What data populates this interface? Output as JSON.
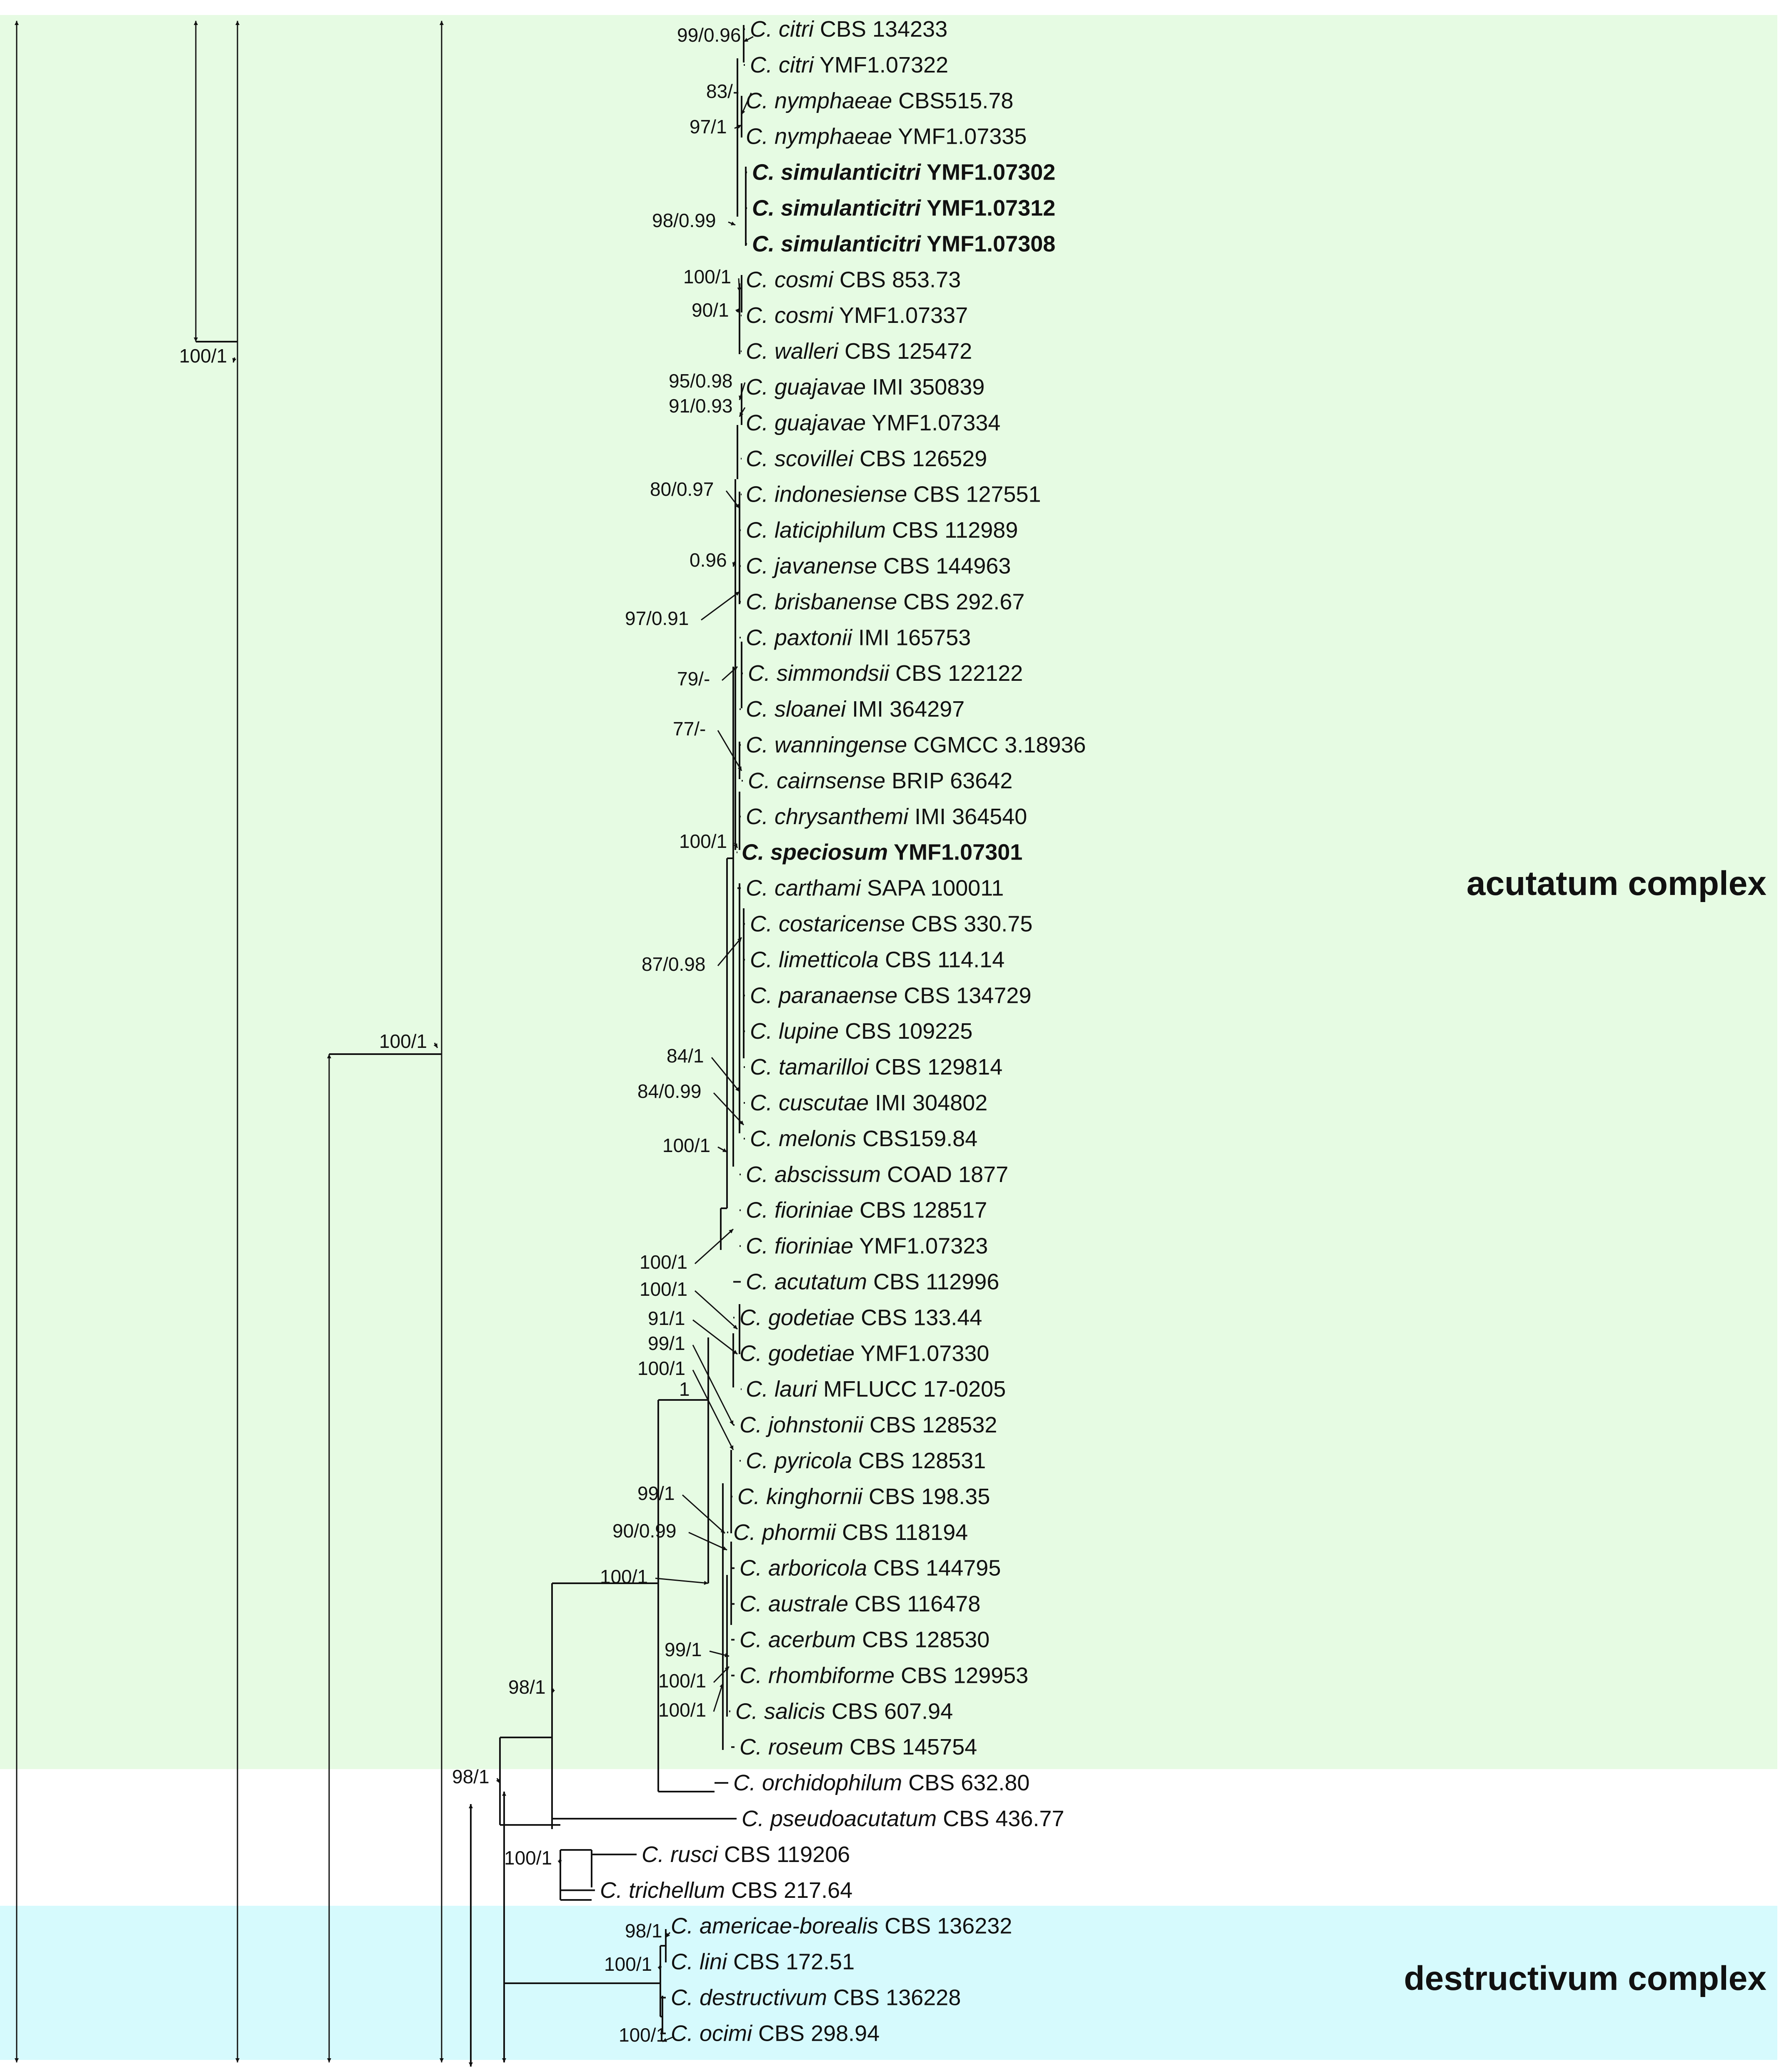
{
  "figure": {
    "type": "phylogenetic tree",
    "complexes": [
      {
        "label": "acutatum complex",
        "color": "#e6fbe3"
      },
      {
        "label": "destructivum complex",
        "color": "#d6fafd"
      }
    ],
    "taxa": [
      {
        "genus": "C.",
        "epithet": "citri",
        "strain": "CBS 134233",
        "bold": false
      },
      {
        "genus": "C.",
        "epithet": "citri",
        "strain": "YMF1.07322",
        "bold": false
      },
      {
        "genus": "C.",
        "epithet": "nymphaeae",
        "strain": "CBS515.78",
        "bold": false
      },
      {
        "genus": "C.",
        "epithet": "nymphaeae",
        "strain": "YMF1.07335",
        "bold": false
      },
      {
        "genus": "C.",
        "epithet": "simulanticitri",
        "strain": "YMF1.07302",
        "bold": true
      },
      {
        "genus": "C.",
        "epithet": "simulanticitri",
        "strain": "YMF1.07312",
        "bold": true
      },
      {
        "genus": "C.",
        "epithet": "simulanticitri",
        "strain": "YMF1.07308",
        "bold": true
      },
      {
        "genus": "C.",
        "epithet": "cosmi",
        "strain": "CBS 853.73",
        "bold": false
      },
      {
        "genus": "C.",
        "epithet": "cosmi",
        "strain": "YMF1.07337",
        "bold": false
      },
      {
        "genus": "C.",
        "epithet": "walleri",
        "strain": "CBS 125472",
        "bold": false
      },
      {
        "genus": "C.",
        "epithet": "guajavae",
        "strain": "IMI 350839",
        "bold": false
      },
      {
        "genus": "C.",
        "epithet": "guajavae",
        "strain": "YMF1.07334",
        "bold": false
      },
      {
        "genus": "C.",
        "epithet": "scovillei",
        "strain": "CBS 126529",
        "bold": false
      },
      {
        "genus": "C.",
        "epithet": "indonesiense",
        "strain": "CBS 127551",
        "bold": false
      },
      {
        "genus": "C.",
        "epithet": "laticiphilum",
        "strain": "CBS 112989",
        "bold": false
      },
      {
        "genus": "C.",
        "epithet": "javanense",
        "strain": "CBS 144963",
        "bold": false
      },
      {
        "genus": "C.",
        "epithet": "brisbanense",
        "strain": "CBS 292.67",
        "bold": false
      },
      {
        "genus": "C.",
        "epithet": "paxtonii",
        "strain": "IMI 165753",
        "bold": false
      },
      {
        "genus": "C.",
        "epithet": "simmondsii",
        "strain": "CBS 122122",
        "bold": false
      },
      {
        "genus": "C.",
        "epithet": "sloanei",
        "strain": "IMI 364297",
        "bold": false
      },
      {
        "genus": "C.",
        "epithet": "wanningense",
        "strain": "CGMCC 3.18936",
        "bold": false
      },
      {
        "genus": "C.",
        "epithet": "cairnsense",
        "strain": "BRIP 63642",
        "bold": false
      },
      {
        "genus": "C.",
        "epithet": "chrysanthemi",
        "strain": "IMI 364540",
        "bold": false
      },
      {
        "genus": "C.",
        "epithet": "speciosum",
        "strain": "YMF1.07301",
        "bold": true
      },
      {
        "genus": "C.",
        "epithet": "carthami",
        "strain": "SAPA 100011",
        "bold": false
      },
      {
        "genus": "C.",
        "epithet": "costaricense",
        "strain": "CBS 330.75",
        "bold": false
      },
      {
        "genus": "C.",
        "epithet": "limetticola",
        "strain": "CBS 114.14",
        "bold": false
      },
      {
        "genus": "C.",
        "epithet": "paranaense",
        "strain": "CBS 134729",
        "bold": false
      },
      {
        "genus": "C.",
        "epithet": "lupine",
        "strain": "CBS 109225",
        "bold": false
      },
      {
        "genus": "C.",
        "epithet": "tamarilloi",
        "strain": "CBS 129814",
        "bold": false
      },
      {
        "genus": "C.",
        "epithet": "cuscutae",
        "strain": "IMI 304802",
        "bold": false
      },
      {
        "genus": "C.",
        "epithet": "melonis",
        "strain": "CBS159.84",
        "bold": false
      },
      {
        "genus": "C.",
        "epithet": "abscissum",
        "strain": "COAD 1877",
        "bold": false
      },
      {
        "genus": "C.",
        "epithet": "fioriniae",
        "strain": "CBS 128517",
        "bold": false
      },
      {
        "genus": "C.",
        "epithet": "fioriniae",
        "strain": "YMF1.07323",
        "bold": false
      },
      {
        "genus": "C.",
        "epithet": "acutatum",
        "strain": "CBS 112996",
        "bold": false
      },
      {
        "genus": "C.",
        "epithet": "godetiae",
        "strain": "CBS 133.44",
        "bold": false
      },
      {
        "genus": "C.",
        "epithet": "godetiae",
        "strain": "YMF1.07330",
        "bold": false
      },
      {
        "genus": "C.",
        "epithet": "lauri",
        "strain": "MFLUCC 17-0205",
        "bold": false
      },
      {
        "genus": "C.",
        "epithet": "johnstonii",
        "strain": "CBS 128532",
        "bold": false
      },
      {
        "genus": "C.",
        "epithet": "pyricola",
        "strain": "CBS 128531",
        "bold": false
      },
      {
        "genus": "C.",
        "epithet": "kinghornii",
        "strain": "CBS 198.35",
        "bold": false
      },
      {
        "genus": "C.",
        "epithet": "phormii",
        "strain": "CBS 118194",
        "bold": false
      },
      {
        "genus": "C.",
        "epithet": "arboricola",
        "strain": "CBS 144795",
        "bold": false
      },
      {
        "genus": "C.",
        "epithet": "australe",
        "strain": "CBS 116478",
        "bold": false
      },
      {
        "genus": "C.",
        "epithet": "acerbum",
        "strain": "CBS 128530",
        "bold": false
      },
      {
        "genus": "C.",
        "epithet": "rhombiforme",
        "strain": "CBS 129953",
        "bold": false
      },
      {
        "genus": "C.",
        "epithet": "salicis",
        "strain": "CBS 607.94",
        "bold": false
      },
      {
        "genus": "C.",
        "epithet": "roseum",
        "strain": "CBS 145754",
        "bold": false
      },
      {
        "genus": "C.",
        "epithet": "orchidophilum",
        "strain": "CBS 632.80",
        "bold": false
      },
      {
        "genus": "C.",
        "epithet": "pseudoacutatum",
        "strain": "CBS 436.77",
        "bold": false
      },
      {
        "genus": "C.",
        "epithet": "rusci",
        "strain": "CBS 119206",
        "bold": false
      },
      {
        "genus": "C.",
        "epithet": "trichellum",
        "strain": "CBS 217.64",
        "bold": false
      },
      {
        "genus": "C.",
        "epithet": "americae-borealis",
        "strain": "CBS 136232",
        "bold": false
      },
      {
        "genus": "C.",
        "epithet": "lini",
        "strain": "CBS 172.51",
        "bold": false
      },
      {
        "genus": "C.",
        "epithet": "destructivum",
        "strain": "CBS 136228",
        "bold": false
      },
      {
        "genus": "C.",
        "epithet": "ocimi",
        "strain": "CBS 298.94",
        "bold": false
      }
    ],
    "supports": [
      "99/0.96",
      "83/-",
      "97/1",
      "98/0.99",
      "100/1",
      "90/1",
      "95/0.98",
      "91/0.93",
      "80/0.97",
      "0.96",
      "97/0.91",
      "79/-",
      "77/-",
      "100/1",
      "87/0.98",
      "84/1",
      "84/0.99",
      "100/1",
      "100/1",
      "100/1",
      "91/1",
      "99/1",
      "100/1",
      "1",
      "99/1",
      "90/0.99",
      "100/1",
      "99/1",
      "100/1",
      "100/1",
      "98/1",
      "98/1",
      "100/1",
      "98/1",
      "100/1",
      "100/1",
      "100/1",
      "100/1"
    ]
  }
}
